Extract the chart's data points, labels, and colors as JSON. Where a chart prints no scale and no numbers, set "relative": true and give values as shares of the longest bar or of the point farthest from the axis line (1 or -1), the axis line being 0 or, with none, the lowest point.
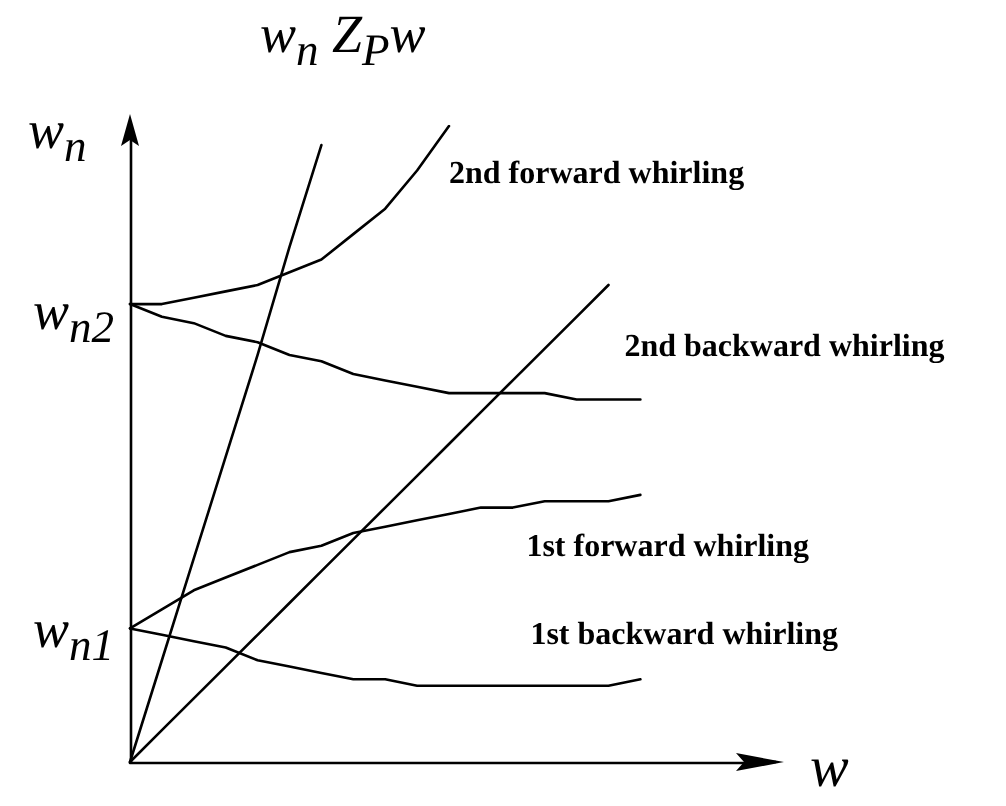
{
  "chart_data": {
    "type": "line",
    "title": "w$_{n}$ Z$_{P}$w",
    "xlabel": "w",
    "ylabel": "w$_{n}$",
    "relative": true,
    "categories": [
      null,
      null,
      null,
      null,
      null,
      null,
      null,
      null,
      null,
      null,
      null,
      null,
      null,
      null,
      null,
      null,
      null,
      null,
      null,
      null,
      null
    ],
    "series": [
      {
        "color": "#000000",
        "values": [
          0,
          0.16,
          0.32,
          0.48,
          0.64,
          0.81,
          0.97,
          null,
          null,
          null,
          null,
          null,
          null,
          null,
          null,
          null,
          null,
          null,
          null,
          null,
          null
        ]
      },
      {
        "color": "#000000",
        "values": [
          0,
          0.05,
          0.1,
          0.15,
          0.2,
          0.25,
          0.3,
          0.35,
          0.4,
          0.45,
          0.5,
          0.55,
          0.6,
          0.65,
          0.7,
          0.75,
          null,
          null,
          null,
          null,
          null
        ]
      },
      {
        "name": "2nd forward whirling",
        "color": "#000000",
        "values": [
          0.72,
          0.72,
          0.73,
          0.74,
          0.75,
          0.77,
          0.79,
          0.83,
          0.87,
          0.93,
          1,
          null,
          null,
          null,
          null,
          null,
          null,
          null,
          null,
          null,
          null
        ]
      },
      {
        "name": "2nd backward whirling",
        "color": "#000000",
        "values": [
          0.72,
          0.7,
          0.69,
          0.67,
          0.66,
          0.64,
          0.63,
          0.61,
          0.6,
          0.59,
          0.58,
          0.58,
          0.58,
          0.58,
          0.57,
          0.57,
          0.57,
          null,
          null,
          null,
          null
        ]
      },
      {
        "name": "1st forward whirling",
        "color": "#000000",
        "values": [
          0.21,
          0.24,
          0.27,
          0.29,
          0.31,
          0.33,
          0.34,
          0.36,
          0.37,
          0.38,
          0.39,
          0.4,
          0.4,
          0.41,
          0.41,
          0.41,
          0.42,
          null,
          null,
          null,
          null
        ]
      },
      {
        "name": "1st backward whirling",
        "color": "#000000",
        "values": [
          0.21,
          0.2,
          0.19,
          0.18,
          0.16,
          0.15,
          0.14,
          0.13,
          0.13,
          0.12,
          0.12,
          0.12,
          0.12,
          0.12,
          0.12,
          0.12,
          0.13,
          null,
          null,
          null,
          null
        ]
      }
    ],
    "annotations": [
      "w$_{n2}$",
      "w$_{n1}$"
    ],
    "marker": "none",
    "line_style": "solid",
    "grid": false,
    "legend": false
  }
}
